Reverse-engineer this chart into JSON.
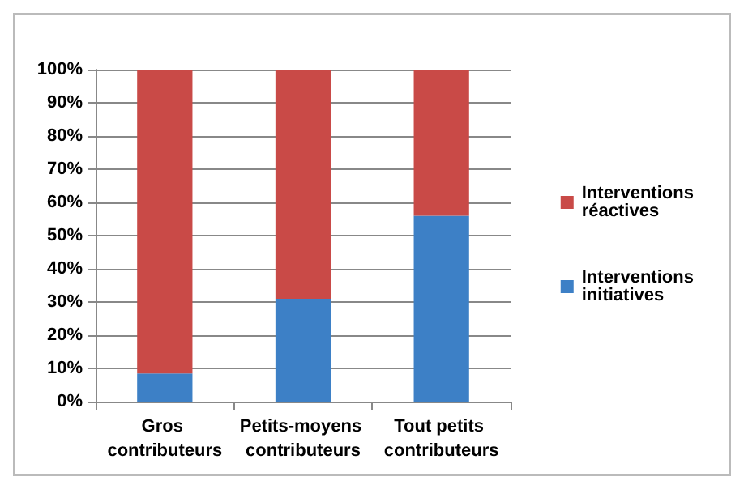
{
  "chart_data": {
    "type": "bar",
    "stacked": true,
    "categories": [
      "Gros contributeurs",
      "Petits-moyens contributeurs",
      "Tout petits contributeurs"
    ],
    "series": [
      {
        "name": "Interventions initiatives",
        "color": "#3d80c6",
        "values": [
          8.5,
          31,
          56
        ]
      },
      {
        "name": "Interventions réactives",
        "color": "#c94a47",
        "values": [
          91.5,
          69,
          44
        ]
      }
    ],
    "ylim": [
      0,
      100
    ],
    "yticks": [
      {
        "value": 0,
        "label": "0%"
      },
      {
        "value": 10,
        "label": "10%"
      },
      {
        "value": 20,
        "label": "20%"
      },
      {
        "value": 30,
        "label": "30%"
      },
      {
        "value": 40,
        "label": "40%"
      },
      {
        "value": 50,
        "label": "50%"
      },
      {
        "value": 60,
        "label": "60%"
      },
      {
        "value": 70,
        "label": "70%"
      },
      {
        "value": 80,
        "label": "80%"
      },
      {
        "value": 90,
        "label": "90%"
      },
      {
        "value": 100,
        "label": "100%"
      }
    ],
    "grid": "y",
    "legend": "right"
  }
}
